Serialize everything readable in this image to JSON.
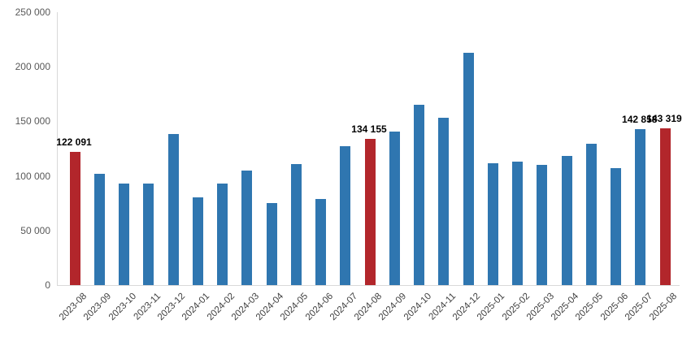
{
  "chart_data": {
    "type": "bar",
    "title": "",
    "xlabel": "",
    "ylabel": "",
    "ylim": [
      0,
      250000
    ],
    "grid": false,
    "legend": "none",
    "colors": {
      "bar_default": "#2F76B0",
      "bar_highlight": "#B2262B",
      "axis_line": "#d9d9d9",
      "y_tick_text": "#595959",
      "x_tick_text": "#404040",
      "data_label_text": "#000000"
    },
    "y_ticks": [
      {
        "value": 0,
        "label": "0"
      },
      {
        "value": 50000,
        "label": "50 000"
      },
      {
        "value": 100000,
        "label": "100 000"
      },
      {
        "value": 150000,
        "label": "150 000"
      },
      {
        "value": 200000,
        "label": "200 000"
      },
      {
        "value": 250000,
        "label": "250 000"
      }
    ],
    "points": [
      {
        "category": "2023-08",
        "value": 122091,
        "highlight": true,
        "label": "122 091"
      },
      {
        "category": "2023-09",
        "value": 102000,
        "highlight": false,
        "label": ""
      },
      {
        "category": "2023-10",
        "value": 93000,
        "highlight": false,
        "label": ""
      },
      {
        "category": "2023-11",
        "value": 93000,
        "highlight": false,
        "label": ""
      },
      {
        "category": "2023-12",
        "value": 138500,
        "highlight": false,
        "label": ""
      },
      {
        "category": "2024-01",
        "value": 80000,
        "highlight": false,
        "label": ""
      },
      {
        "category": "2024-02",
        "value": 93000,
        "highlight": false,
        "label": ""
      },
      {
        "category": "2024-03",
        "value": 105000,
        "highlight": false,
        "label": ""
      },
      {
        "category": "2024-04",
        "value": 75000,
        "highlight": false,
        "label": ""
      },
      {
        "category": "2024-05",
        "value": 111000,
        "highlight": false,
        "label": ""
      },
      {
        "category": "2024-06",
        "value": 79000,
        "highlight": false,
        "label": ""
      },
      {
        "category": "2024-07",
        "value": 127000,
        "highlight": false,
        "label": ""
      },
      {
        "category": "2024-08",
        "value": 134155,
        "highlight": true,
        "label": "134 155"
      },
      {
        "category": "2024-09",
        "value": 140500,
        "highlight": false,
        "label": ""
      },
      {
        "category": "2024-10",
        "value": 165500,
        "highlight": false,
        "label": ""
      },
      {
        "category": "2024-11",
        "value": 153000,
        "highlight": false,
        "label": ""
      },
      {
        "category": "2024-12",
        "value": 212500,
        "highlight": false,
        "label": ""
      },
      {
        "category": "2025-01",
        "value": 111500,
        "highlight": false,
        "label": ""
      },
      {
        "category": "2025-02",
        "value": 113000,
        "highlight": false,
        "label": ""
      },
      {
        "category": "2025-03",
        "value": 110000,
        "highlight": false,
        "label": ""
      },
      {
        "category": "2025-04",
        "value": 118000,
        "highlight": false,
        "label": ""
      },
      {
        "category": "2025-05",
        "value": 129500,
        "highlight": false,
        "label": ""
      },
      {
        "category": "2025-06",
        "value": 107000,
        "highlight": false,
        "label": ""
      },
      {
        "category": "2025-07",
        "value": 142858,
        "highlight": false,
        "label": "142 858"
      },
      {
        "category": "2025-08",
        "value": 143319,
        "highlight": true,
        "label": "143 319"
      }
    ]
  }
}
